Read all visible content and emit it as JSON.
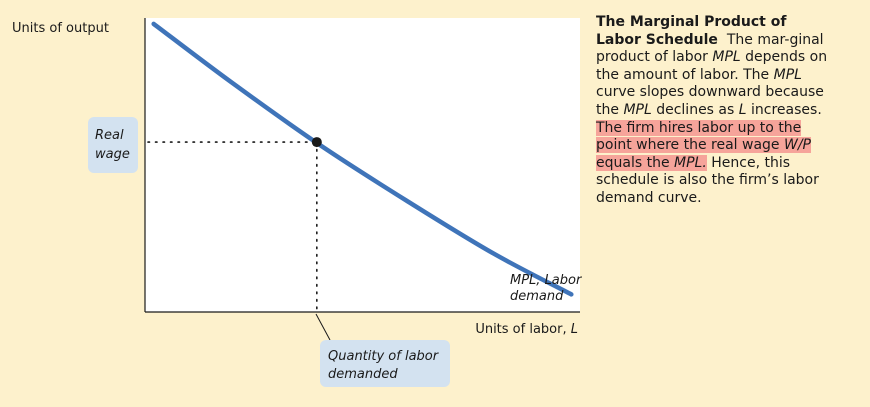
{
  "chart_data": {
    "type": "line",
    "title": "",
    "xlabel_main": "Units of labor, ",
    "xlabel_var": "L",
    "ylabel": "Units of output",
    "x_ticks": [],
    "y_ticks": [],
    "series": [
      {
        "name": "MPL, Labor demand",
        "color": "#3f74b9",
        "x": [
          0.02,
          0.2,
          0.4,
          0.6,
          0.8,
          0.98
        ],
        "y": [
          0.98,
          0.78,
          0.57,
          0.38,
          0.2,
          0.06
        ]
      }
    ],
    "point": {
      "x": 0.395,
      "y": 0.578
    },
    "curve_label_line1": "MPL, Labor",
    "curve_label_line2": "demand",
    "annotations": {
      "real_wage_line1": "Real",
      "real_wage_line2": "wage",
      "quantity_line1": "Quantity of labor",
      "quantity_line2": "demanded"
    },
    "grid": false,
    "colors": {
      "background": "#fdf1cc",
      "plot_bg": "#ffffff",
      "tag_bg": "#d3e2f0",
      "curve": "#3f74b9"
    }
  },
  "caption": {
    "title": "The Marginal Product of Labor Schedule",
    "seg1": "The mar-ginal product of labor ",
    "mpl1": "MPL",
    "seg2": " depends on the amount of labor. The ",
    "mpl2": "MPL",
    "seg3": " curve slopes downward because the ",
    "mpl3": "MPL",
    "seg4": " declines as ",
    "l1": "L",
    "seg5": " increases. ",
    "hl1": "The firm hires labor up to the point where the real wage ",
    "wp": "W/P",
    "hl2": " equals the ",
    "mpl4": "MPL.",
    "seg6": " Hence, this schedule is also the firm’s labor demand curve.",
    "highlight_color": "#f6a49a"
  }
}
